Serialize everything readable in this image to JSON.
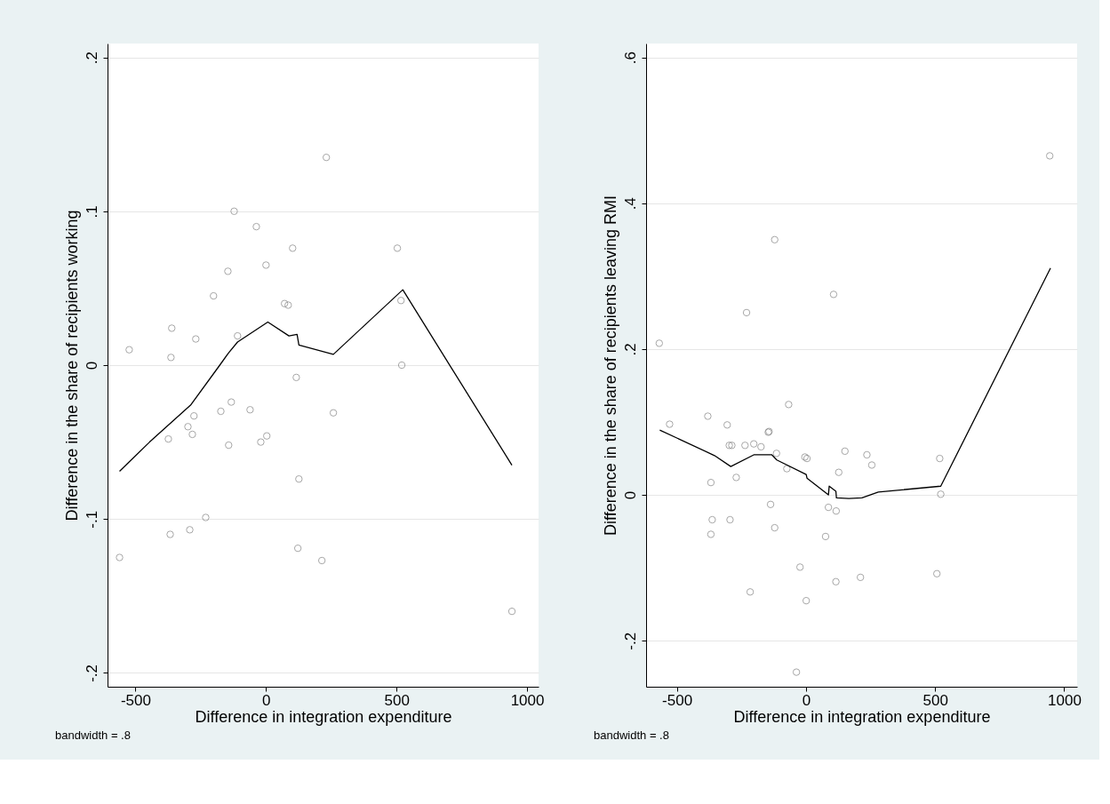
{
  "chart_data": [
    {
      "type": "scatter",
      "xlabel": "Difference in integration expenditure",
      "ylabel": "Difference in the share of recipients working",
      "annotations": [
        "bandwidth = .8"
      ],
      "grid": "y",
      "xlim": [
        -607,
        1044
      ],
      "ylim": [
        -0.209,
        0.209
      ],
      "xticks": [
        -500,
        0,
        500,
        1000
      ],
      "yticks": [
        {
          "value": -0.2,
          "label": "-.2"
        },
        {
          "value": -0.1,
          "label": "-.1"
        },
        0,
        {
          "value": 0.1,
          "label": ".1"
        },
        {
          "value": 0.2,
          "label": ".2"
        }
      ],
      "series": [
        {
          "marker": "circle",
          "color": "#808080",
          "x": [
            -524,
            231,
            -122,
            -37,
            102,
            503,
            0,
            -146,
            -201,
            71,
            85,
            517,
            -361,
            -109,
            -269,
            -364,
            520,
            116,
            -133,
            -173,
            -61,
            258,
            -276,
            -299,
            -282,
            -374,
            -143,
            3,
            -20,
            126,
            -231,
            -367,
            -292,
            -561,
            122,
            214,
            942
          ],
          "values": [
            0.01,
            0.135,
            0.1,
            0.09,
            0.076,
            0.076,
            0.065,
            0.061,
            0.045,
            0.04,
            0.039,
            0.042,
            0.024,
            0.019,
            0.017,
            0.005,
            0.0,
            -0.008,
            -0.024,
            -0.03,
            -0.029,
            -0.031,
            -0.033,
            -0.04,
            -0.045,
            -0.048,
            -0.052,
            -0.046,
            -0.05,
            -0.074,
            -0.099,
            -0.11,
            -0.107,
            -0.125,
            -0.119,
            -0.127,
            -0.16
          ]
        },
        {
          "type": "line",
          "color": "#000000",
          "x": [
            -561,
            -446,
            -289,
            -177,
            -143,
            -109,
            7,
            88,
            119,
            126,
            258,
            524,
            942
          ],
          "values": [
            -0.069,
            -0.05,
            -0.026,
            0.0,
            0.008,
            0.015,
            0.028,
            0.019,
            0.02,
            0.013,
            0.007,
            0.049,
            -0.065
          ]
        }
      ]
    },
    {
      "type": "scatter",
      "xlabel": "Difference in integration expenditure",
      "ylabel": "Difference in the share of recipients leaving RMI",
      "annotations": [
        "bandwidth = .8"
      ],
      "grid": "y",
      "xlim": [
        -619,
        1050
      ],
      "ylim": [
        -0.263,
        0.619
      ],
      "xticks": [
        -500,
        0,
        500,
        1000
      ],
      "yticks": [
        {
          "value": -0.2,
          "label": "-.2"
        },
        0,
        {
          "value": 0.2,
          "label": ".2"
        },
        {
          "value": 0.4,
          "label": ".4"
        },
        {
          "value": 0.6,
          "label": ".6"
        }
      ],
      "series": [
        {
          "marker": "circle",
          "color": "#808080",
          "x": [
            -568,
            -230,
            -121,
            107,
            944,
            -528,
            -380,
            -305,
            -67,
            -146,
            -143,
            -297,
            -287,
            -236,
            -202,
            -174,
            -114,
            -74,
            -4,
            4,
            151,
            236,
            255,
            127,
            518,
            -368,
            -270,
            522,
            -137,
            87,
            117,
            -363,
            -294,
            -121,
            -368,
            76,
            -23,
            507,
            211,
            116,
            -216,
            1,
            -37
          ],
          "values": [
            0.208,
            0.25,
            0.35,
            0.275,
            0.465,
            0.097,
            0.108,
            0.096,
            0.124,
            0.086,
            0.087,
            0.068,
            0.068,
            0.068,
            0.07,
            0.066,
            0.057,
            0.036,
            0.052,
            0.05,
            0.06,
            0.055,
            0.041,
            0.031,
            0.05,
            0.017,
            0.024,
            0.001,
            -0.013,
            -0.017,
            -0.022,
            -0.034,
            -0.034,
            -0.045,
            -0.054,
            -0.057,
            -0.099,
            -0.108,
            -0.113,
            -0.119,
            -0.133,
            -0.145,
            -0.243
          ]
        },
        {
          "type": "line",
          "color": "#000000",
          "x": [
            -566,
            -354,
            -291,
            -202,
            -132,
            -113,
            1,
            4,
            87,
            90,
            116,
            118,
            166,
            217,
            280,
            522,
            947
          ],
          "values": [
            0.089,
            0.054,
            0.039,
            0.055,
            0.055,
            0.048,
            0.028,
            0.023,
            0.0,
            0.012,
            0.005,
            -0.004,
            -0.005,
            -0.004,
            0.004,
            0.012,
            0.311
          ]
        }
      ]
    }
  ]
}
